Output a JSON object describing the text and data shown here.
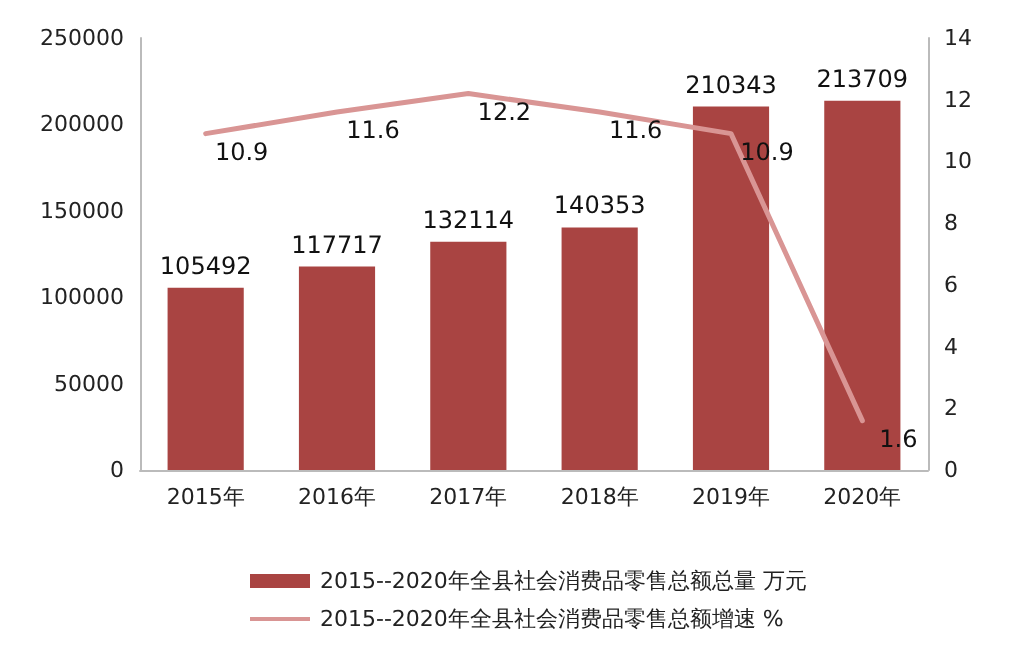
{
  "chart_data": {
    "type": "bar",
    "categories": [
      "2015年",
      "2016年",
      "2017年",
      "2018年",
      "2019年",
      "2020年"
    ],
    "series": [
      {
        "name": "2015--2020年全县社会消费品零售总额总量 万元",
        "color": "#a94442",
        "values": [
          105492,
          117717,
          132114,
          140353,
          210343,
          213709
        ]
      },
      {
        "name": "2015--2020年全县社会消费品零售总额增速 %",
        "type": "line",
        "axis": "y2",
        "color": "#d99594",
        "values": [
          10.9,
          11.6,
          12.2,
          11.6,
          10.9,
          1.6
        ]
      }
    ],
    "ylim": [
      0,
      250000
    ],
    "yticks": [
      0,
      50000,
      100000,
      150000,
      200000,
      250000
    ],
    "y2lim": [
      0,
      14
    ],
    "y2ticks": [
      0,
      2,
      4,
      6,
      8,
      10,
      12,
      14
    ],
    "data_labels": true,
    "grid": false,
    "legend": "bottom",
    "marker": "none"
  }
}
